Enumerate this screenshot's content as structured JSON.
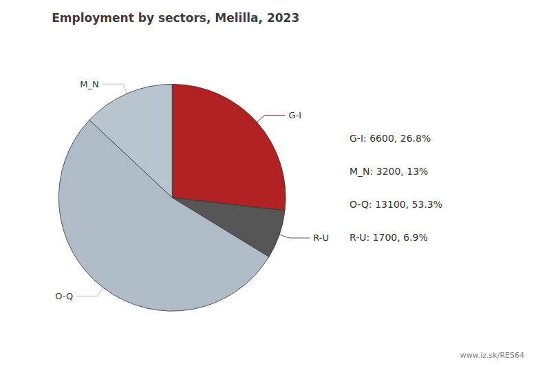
{
  "chart_data": {
    "type": "pie",
    "title": "Employment by sectors, Melilla, 2023",
    "categories": [
      "G-I",
      "R-U",
      "O-Q",
      "M_N"
    ],
    "values": [
      6600,
      1700,
      13100,
      3200
    ],
    "colors": [
      "#b22222",
      "#565656",
      "#b0bbc8",
      "#b8c4ce"
    ],
    "annotations": [
      "G-I: 6600, 26.8%",
      "M_N: 3200, 13%",
      "O-Q: 13100, 53.3%",
      "R-U: 1700, 6.9%"
    ],
    "watermark": "www.iz.sk/RES64",
    "legend": false,
    "grid": false
  }
}
